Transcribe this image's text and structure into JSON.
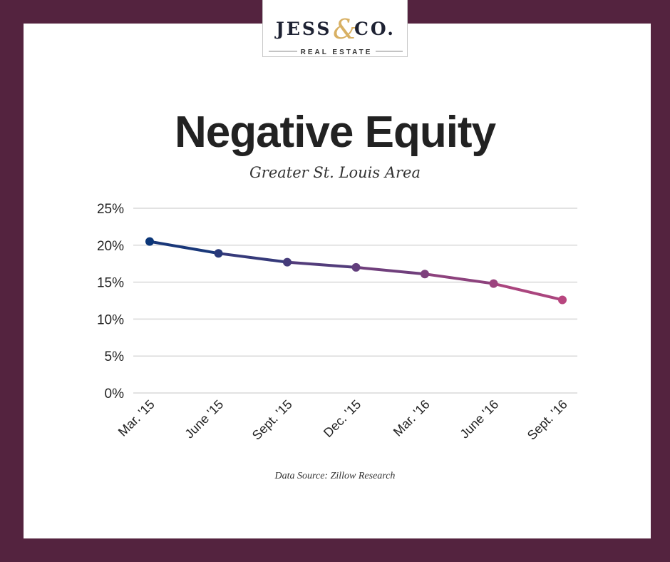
{
  "logo": {
    "brand": "JESS & CO.",
    "tagline": "REAL ESTATE"
  },
  "title": "Negative Equity",
  "subtitle": "Greater St. Louis Area",
  "source": "Data Source: Zillow Research",
  "colors": {
    "frame": "#54233f",
    "line_start": "#0b3678",
    "line_end": "#b8467f",
    "ampersand": "#d8b063"
  },
  "chart_data": {
    "type": "line",
    "title": "Negative Equity",
    "subtitle": "Greater St. Louis Area",
    "xlabel": "",
    "ylabel": "",
    "categories": [
      "Mar. '15",
      "June '15",
      "Sept. '15",
      "Dec. '15",
      "Mar. '16",
      "June '16",
      "Sept. '16"
    ],
    "series": [
      {
        "name": "Negative Equity",
        "values": [
          20.5,
          18.9,
          17.7,
          17.0,
          16.1,
          14.8,
          12.6
        ]
      }
    ],
    "yticks": [
      "0%",
      "5%",
      "10%",
      "15%",
      "20%",
      "25%"
    ],
    "ylim": [
      0,
      25
    ],
    "grid": true,
    "legend": "none"
  }
}
